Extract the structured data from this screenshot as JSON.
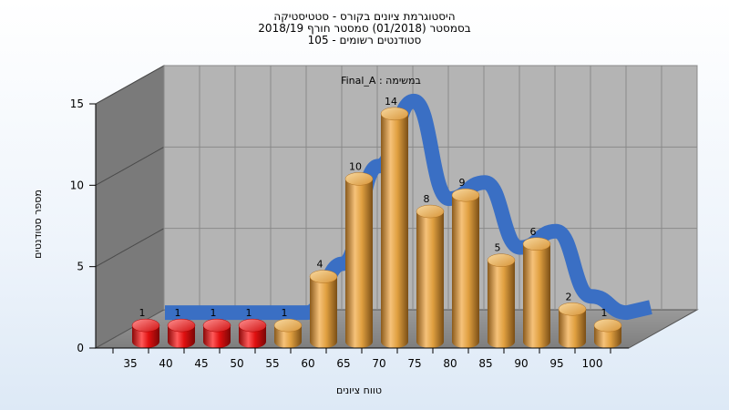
{
  "chart_data": {
    "type": "bar",
    "title_lines": [
      "היסטוגרמת ציונים בקורס - סטטיסטיקה",
      "בסמסטר  (01/2018)  סמסטר חורף 2018/19",
      "105 - סטודנטים רשומים"
    ],
    "annotation": "במשימה : Final_A",
    "xlabel": "טווח ציונים",
    "ylabel": "מספר סטודנטים",
    "categories": [
      "35",
      "40",
      "45",
      "50",
      "55",
      "60",
      "65",
      "70",
      "75",
      "80",
      "85",
      "90",
      "95",
      "100"
    ],
    "values": [
      1,
      1,
      1,
      1,
      1,
      4,
      10,
      14,
      8,
      9,
      5,
      6,
      2,
      1
    ],
    "ylim": [
      0,
      15
    ],
    "yticks": [
      0,
      5,
      10,
      15
    ],
    "grid": true,
    "colors": {
      "low_bars": "#e01010",
      "bars": "#e0a040",
      "curve": "#3a6fc4",
      "wall": "#b4b4b4",
      "side_wall": "#7a7a7a",
      "floor": "#8c8c8c"
    }
  }
}
